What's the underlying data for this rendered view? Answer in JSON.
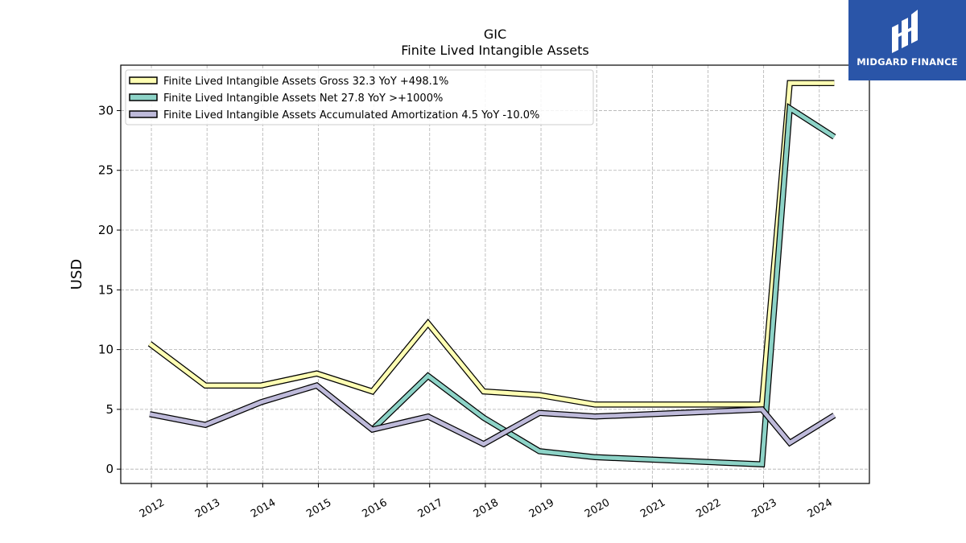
{
  "chart_data": {
    "type": "line",
    "title": "GIC",
    "subtitle": "Finite Lived Intangible Assets",
    "xlabel": "",
    "ylabel": "USD",
    "ylim": [
      -1.2,
      33.8
    ],
    "yticks": [
      0,
      5,
      10,
      15,
      20,
      25,
      30
    ],
    "xticks": [
      "2012",
      "2013",
      "2014",
      "2015",
      "2016",
      "2017",
      "2018",
      "2019",
      "2020",
      "2021",
      "2022",
      "2023",
      "2024"
    ],
    "grid": true,
    "legend_position": "top-left",
    "series": [
      {
        "name": "Finite Lived Intangible Assets Gross  32.3 YoY +498.1%",
        "color": "#ffffb3",
        "points": [
          {
            "x": 2011.97,
            "y": 10.5
          },
          {
            "x": 2012.97,
            "y": 7.0
          },
          {
            "x": 2013.97,
            "y": 7.0
          },
          {
            "x": 2014.97,
            "y": 8.0
          },
          {
            "x": 2015.97,
            "y": 6.5
          },
          {
            "x": 2016.97,
            "y": 12.2
          },
          {
            "x": 2017.97,
            "y": 6.5
          },
          {
            "x": 2018.97,
            "y": 6.2
          },
          {
            "x": 2019.97,
            "y": 5.4
          },
          {
            "x": 2022.97,
            "y": 5.4
          },
          {
            "x": 2023.47,
            "y": 32.3
          },
          {
            "x": 2024.27,
            "y": 32.3
          }
        ]
      },
      {
        "name": "Finite Lived Intangible Assets Net  27.8 YoY >+1000%",
        "color": "#8dd3c7",
        "points": [
          {
            "x": 2015.97,
            "y": 3.3
          },
          {
            "x": 2016.97,
            "y": 7.8
          },
          {
            "x": 2017.97,
            "y": 4.3
          },
          {
            "x": 2018.97,
            "y": 1.5
          },
          {
            "x": 2019.97,
            "y": 1.0
          },
          {
            "x": 2022.97,
            "y": 0.4
          },
          {
            "x": 2023.47,
            "y": 30.2
          },
          {
            "x": 2024.27,
            "y": 27.8
          }
        ]
      },
      {
        "name": "Finite Lived Intangible Assets Accumulated Amortization  4.5 YoY -10.0%",
        "color": "#bebada",
        "points": [
          {
            "x": 2011.97,
            "y": 4.6
          },
          {
            "x": 2012.97,
            "y": 3.7
          },
          {
            "x": 2013.97,
            "y": 5.6
          },
          {
            "x": 2014.97,
            "y": 7.0
          },
          {
            "x": 2015.97,
            "y": 3.3
          },
          {
            "x": 2016.97,
            "y": 4.4
          },
          {
            "x": 2017.97,
            "y": 2.1
          },
          {
            "x": 2018.97,
            "y": 4.7
          },
          {
            "x": 2019.97,
            "y": 4.4
          },
          {
            "x": 2022.97,
            "y": 5.0
          },
          {
            "x": 2023.47,
            "y": 2.2
          },
          {
            "x": 2024.27,
            "y": 4.5
          }
        ]
      }
    ]
  },
  "logo": {
    "text": "MIDGARD FINANCE",
    "icon": "midgard-logo-icon",
    "background": "#2a55a8"
  }
}
